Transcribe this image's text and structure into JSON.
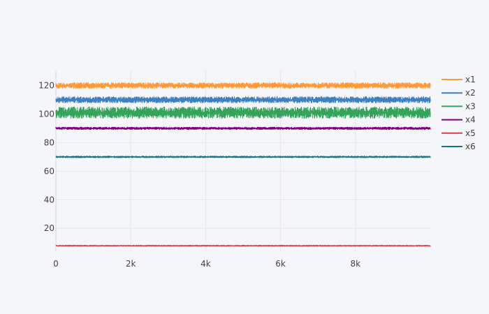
{
  "chart_data": {
    "type": "line",
    "title": "",
    "xlabel": "",
    "ylabel": "",
    "xlim": [
      0,
      10000
    ],
    "ylim": [
      3,
      131
    ],
    "grid": true,
    "legend_position": "right",
    "x_ticks": [
      {
        "value": 0,
        "label": "0"
      },
      {
        "value": 2000,
        "label": "2k"
      },
      {
        "value": 4000,
        "label": "4k"
      },
      {
        "value": 6000,
        "label": "6k"
      },
      {
        "value": 8000,
        "label": "8k"
      }
    ],
    "y_ticks": [
      {
        "value": 20,
        "label": "20"
      },
      {
        "value": 40,
        "label": "40"
      },
      {
        "value": 60,
        "label": "60"
      },
      {
        "value": 80,
        "label": "80"
      },
      {
        "value": 100,
        "label": "100"
      },
      {
        "value": 120,
        "label": "120"
      }
    ],
    "n_points": 10000,
    "series": [
      {
        "name": "x1",
        "color": "#ff9933",
        "mean": 120,
        "noise_amplitude": 2.0
      },
      {
        "name": "x2",
        "color": "#3d7fbf",
        "mean": 110,
        "noise_amplitude": 2.2
      },
      {
        "name": "x3",
        "color": "#35a35a",
        "mean": 101,
        "noise_amplitude": 4.0
      },
      {
        "name": "x4",
        "color": "#800080",
        "mean": 90,
        "noise_amplitude": 0.9
      },
      {
        "name": "x5",
        "color": "#db3d4f",
        "mean": 7.8,
        "noise_amplitude": 0.4
      },
      {
        "name": "x6",
        "color": "#10767f",
        "mean": 70,
        "noise_amplitude": 0.6
      }
    ]
  }
}
